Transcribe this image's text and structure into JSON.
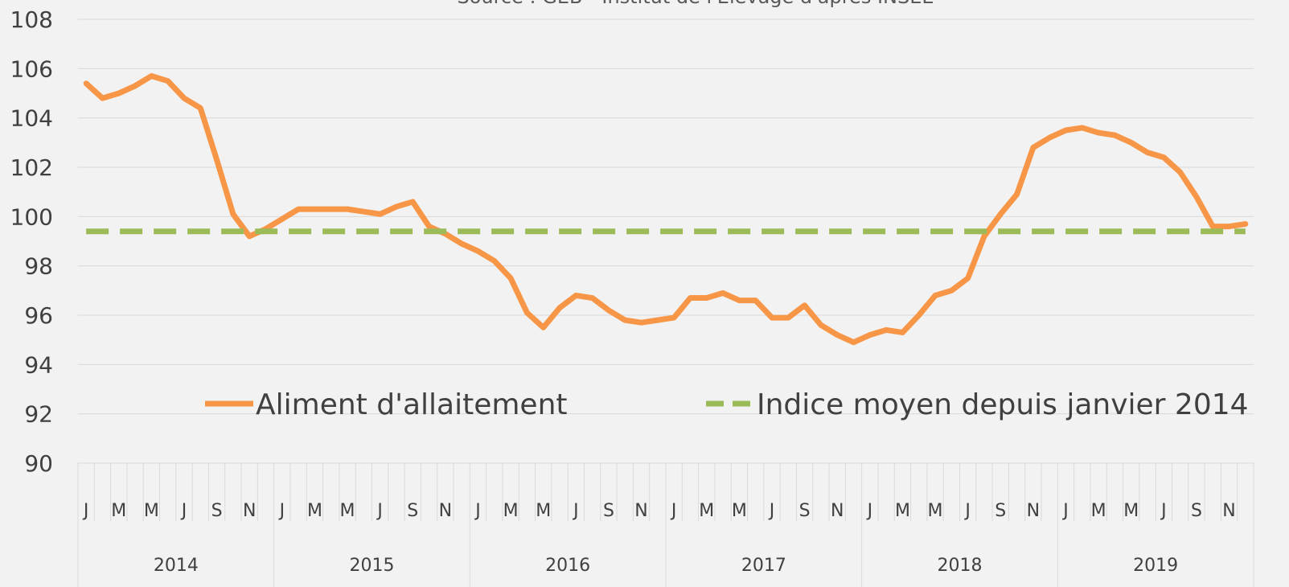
{
  "chart_data": {
    "type": "line",
    "subtitle": "Source : GEB - Institut de l'Elevage d'après INSEE",
    "categories": [
      "J",
      null,
      "M",
      null,
      "M",
      null,
      "J",
      null,
      "S",
      null,
      "N",
      null,
      "J",
      null,
      "M",
      null,
      "M",
      null,
      "J",
      null,
      "S",
      null,
      "N",
      null,
      "J",
      null,
      "M",
      null,
      "M",
      null,
      "J",
      null,
      "S",
      null,
      "N",
      null,
      "J",
      null,
      "M",
      null,
      "M",
      null,
      "J",
      null,
      "S",
      null,
      "N",
      null,
      "J",
      null,
      "M",
      null,
      "M",
      null,
      "J",
      null,
      "S",
      null,
      "N",
      null,
      "J",
      null,
      "M",
      null,
      "M",
      null,
      "J",
      null,
      "S",
      null,
      "N",
      null
    ],
    "years": [
      "2014",
      "2015",
      "2016",
      "2017",
      "2018",
      "2019"
    ],
    "series": [
      {
        "name": "Aliment d'allaitement",
        "color": "#f79646",
        "dashed": false,
        "values": [
          105.4,
          104.8,
          105.0,
          105.3,
          105.7,
          105.5,
          104.8,
          104.4,
          102.3,
          100.1,
          99.2,
          99.5,
          99.9,
          100.3,
          100.3,
          100.3,
          100.3,
          100.2,
          100.1,
          100.4,
          100.6,
          99.6,
          99.3,
          98.9,
          98.6,
          98.2,
          97.5,
          96.1,
          95.5,
          96.3,
          96.8,
          96.7,
          96.2,
          95.8,
          95.7,
          95.8,
          95.9,
          96.7,
          96.7,
          96.9,
          96.6,
          96.6,
          95.9,
          95.9,
          96.4,
          95.6,
          95.2,
          94.9,
          95.2,
          95.4,
          95.3,
          96.0,
          96.8,
          97.0,
          97.5,
          99.2,
          100.1,
          100.9,
          102.8,
          103.2,
          103.5,
          103.6,
          103.4,
          103.3,
          103.0,
          102.6,
          102.4,
          101.8,
          100.8,
          99.6,
          99.6,
          99.7
        ]
      },
      {
        "name": "Indice moyen depuis janvier 2014",
        "color": "#9bbb59",
        "dashed": true,
        "values": [
          99.4,
          99.4,
          99.4,
          99.4,
          99.4,
          99.4,
          99.4,
          99.4,
          99.4,
          99.4,
          99.4,
          99.4,
          99.4,
          99.4,
          99.4,
          99.4,
          99.4,
          99.4,
          99.4,
          99.4,
          99.4,
          99.4,
          99.4,
          99.4,
          99.4,
          99.4,
          99.4,
          99.4,
          99.4,
          99.4,
          99.4,
          99.4,
          99.4,
          99.4,
          99.4,
          99.4,
          99.4,
          99.4,
          99.4,
          99.4,
          99.4,
          99.4,
          99.4,
          99.4,
          99.4,
          99.4,
          99.4,
          99.4,
          99.4,
          99.4,
          99.4,
          99.4,
          99.4,
          99.4,
          99.4,
          99.4,
          99.4,
          99.4,
          99.4,
          99.4,
          99.4,
          99.4,
          99.4,
          99.4,
          99.4,
          99.4,
          99.4,
          99.4,
          99.4,
          99.4,
          99.4,
          99.4
        ]
      }
    ],
    "ylim": [
      90,
      108
    ],
    "yticks": [
      90,
      92,
      94,
      96,
      98,
      100,
      102,
      104,
      106,
      108
    ],
    "grid": true,
    "legend": "inside-bottom"
  }
}
